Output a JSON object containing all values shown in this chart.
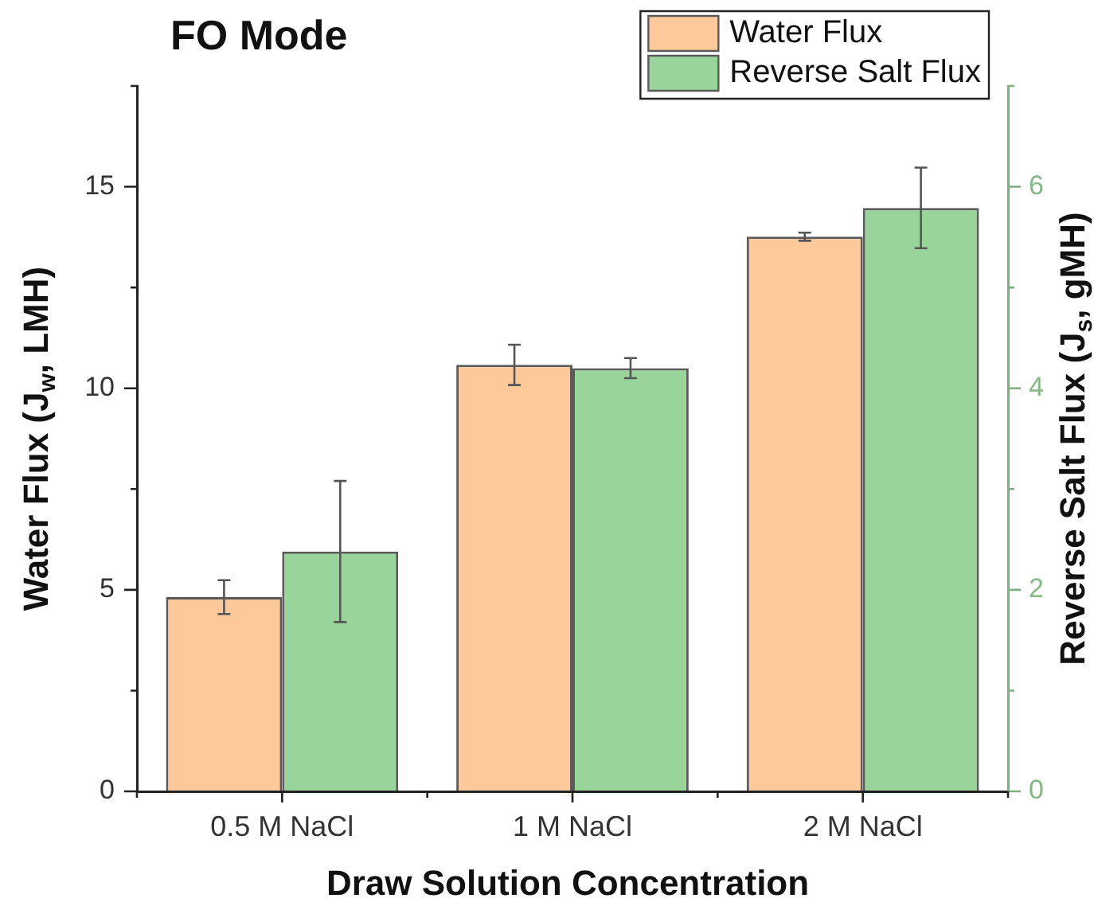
{
  "chart_data": {
    "type": "bar",
    "title": "FO Mode",
    "xlabel": "Draw Solution Concentration",
    "ylabel": "Water Flux (J$_{w}$, LMH)",
    "y2label": "Reverse Salt Flux (J$_{s}$, gMH)",
    "categories": [
      "0.5 M NaCl",
      "1 M NaCl",
      "2 M NaCl"
    ],
    "series": [
      {
        "name": "Water Flux",
        "color": "#fdc99b",
        "values": [
          4.82,
          10.58,
          13.76
        ],
        "errors": [
          0.42,
          0.5,
          0.1
        ]
      },
      {
        "name": "Reverse Salt Flux",
        "color": "#99d59a",
        "axis": "y2",
        "values": [
          2.38,
          4.2,
          5.79
        ],
        "errors": [
          0.7,
          0.1,
          0.4
        ]
      }
    ],
    "ylim": [
      0,
      17.5
    ],
    "yticks": [
      0,
      {
        "value": 2.5,
        "label": null
      },
      5,
      {
        "value": 7.5,
        "label": null
      },
      10,
      {
        "value": 12.5,
        "label": null
      },
      15,
      {
        "value": 17.5,
        "label": null
      }
    ],
    "y2lim": [
      0,
      7
    ],
    "y2ticks": [
      0,
      {
        "value": 1,
        "label": null
      },
      2,
      {
        "value": 3,
        "label": null
      },
      4,
      {
        "value": 5,
        "label": null
      },
      6,
      {
        "value": 7,
        "label": null
      }
    ],
    "legend": "top right"
  }
}
